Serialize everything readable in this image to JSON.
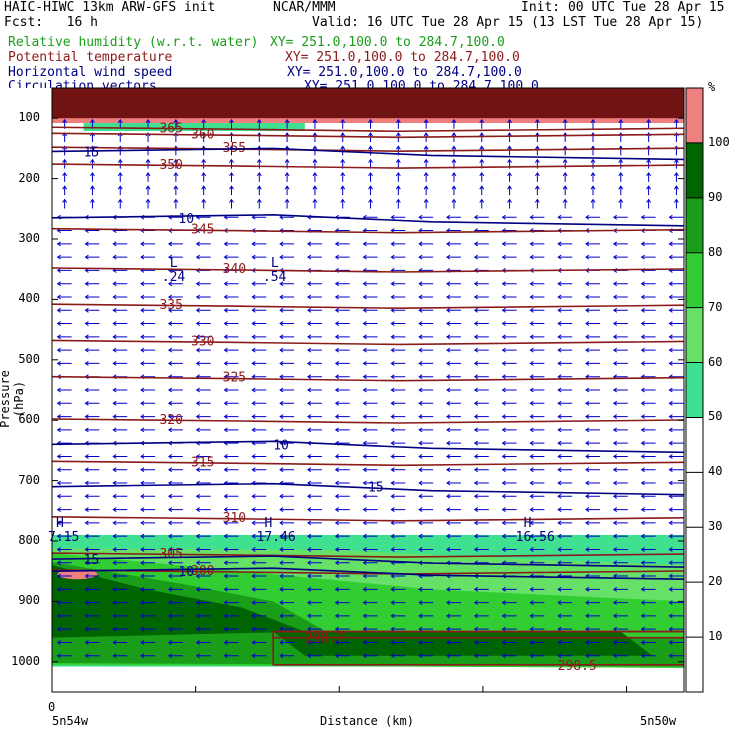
{
  "header": {
    "model": "HAIC-HIWC 13km ARW-GFS init",
    "org": "NCAR/MMM",
    "init": "Init: 00 UTC Tue 28 Apr 15",
    "fcst": "Fcst:   16 h",
    "valid": "Valid: 16 UTC Tue 28 Apr 15 (13 LST Tue 28 Apr 15)"
  },
  "fields": [
    {
      "name": "Relative humidity (w.r.t. water)",
      "xy": "XY= 251.0,100.0 to 284.7,100.0",
      "color": "#1a9e1a"
    },
    {
      "name": "Potential temperature",
      "xy": "XY= 251.0,100.0 to 284.7,100.0",
      "color": "#8b1a1a"
    },
    {
      "name": "Horizontal wind speed",
      "xy": "XY= 251.0,100.0 to 284.7,100.0",
      "color": "#000080"
    },
    {
      "name": "Circulation vectors",
      "xy": "XY= 251.0,100.0 to 284.7,100.0",
      "color": "#000080"
    }
  ],
  "chart_data": {
    "type": "cross-section",
    "ylabel": "Pressure (hPa)",
    "xlabel": "Distance (km)",
    "x_zero_label": "0",
    "x_left_label": "5n54w",
    "x_right_label": "5n50w",
    "y_ticks": [
      100,
      200,
      300,
      400,
      500,
      600,
      700,
      800,
      900,
      1000
    ],
    "y_range": [
      50,
      1050
    ],
    "colorbar": {
      "unit": "%",
      "ticks": [
        10,
        20,
        30,
        40,
        50,
        60,
        70,
        80,
        90,
        100
      ],
      "bins": [
        {
          "from": 100,
          "to": 110,
          "color": "#f08080"
        },
        {
          "from": 90,
          "to": 100,
          "color": "#006400"
        },
        {
          "from": 80,
          "to": 90,
          "color": "#1a9e1a"
        },
        {
          "from": 70,
          "to": 80,
          "color": "#32cd32"
        },
        {
          "from": 60,
          "to": 70,
          "color": "#66e066"
        },
        {
          "from": 50,
          "to": 60,
          "color": "#3fe08f"
        }
      ]
    },
    "theta_contours": [
      {
        "label": "365",
        "p": 115
      },
      {
        "label": "360",
        "p": 125
      },
      {
        "label": "355",
        "p": 148
      },
      {
        "label": "350",
        "p": 176
      },
      {
        "label": "345",
        "p": 283
      },
      {
        "label": "340",
        "p": 348
      },
      {
        "label": "335",
        "p": 408
      },
      {
        "label": "330",
        "p": 468
      },
      {
        "label": "325",
        "p": 528
      },
      {
        "label": "320",
        "p": 598
      },
      {
        "label": "315",
        "p": 668
      },
      {
        "label": "310",
        "p": 760
      },
      {
        "label": "305",
        "p": 820
      },
      {
        "label": "300",
        "p": 848
      },
      {
        "label": "298.7",
        "p": 960
      },
      {
        "label": "298.5",
        "p": 1005
      }
    ],
    "speed_contours": [
      {
        "label": "15",
        "p": 155
      },
      {
        "label": "10",
        "p": 265
      },
      {
        "label": "10",
        "p": 640
      },
      {
        "label": "15",
        "p": 710
      },
      {
        "label": "15",
        "p": 830
      },
      {
        "label": "10",
        "p": 850
      }
    ],
    "extrema": [
      {
        "mark": "L",
        "value": ".24",
        "x": 0.18,
        "p": 360
      },
      {
        "mark": "L",
        "value": ".54",
        "x": 0.34,
        "p": 360
      },
      {
        "mark": "H",
        "value": "7.15",
        "x": 0.0,
        "p": 790
      },
      {
        "mark": "H",
        "value": "17.46",
        "x": 0.33,
        "p": 790
      },
      {
        "mark": "H",
        "value": "16.56",
        "x": 0.74,
        "p": 790
      }
    ]
  }
}
